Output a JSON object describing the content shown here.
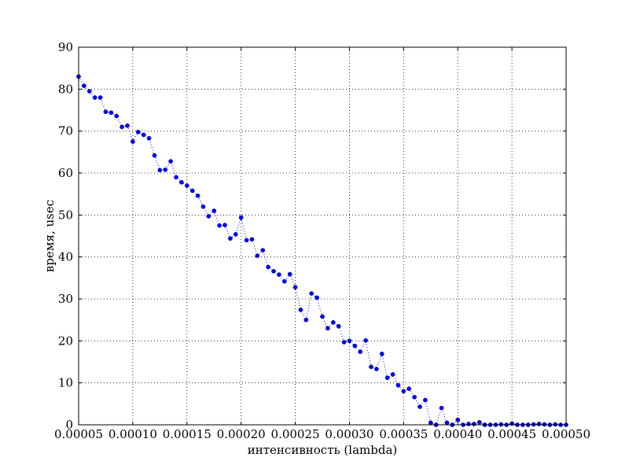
{
  "chart_data": {
    "type": "line",
    "title": "",
    "xlabel": "интенсивность (lambda)",
    "ylabel": "время, usec",
    "xlim": [
      5e-05,
      0.0005
    ],
    "ylim": [
      0,
      90
    ],
    "xticks": [
      "0.00005",
      "0.00010",
      "0.00015",
      "0.00020",
      "0.00025",
      "0.00030",
      "0.00035",
      "0.00040",
      "0.00045",
      "0.00050"
    ],
    "yticks": [
      "0",
      "10",
      "20",
      "30",
      "40",
      "50",
      "60",
      "70",
      "80",
      "90"
    ],
    "grid": true,
    "line_style": "dotted",
    "marker": "circle",
    "color": "#0000ff",
    "series": [
      {
        "x": [
          5e-05,
          5.5e-05,
          6e-05,
          6.5e-05,
          7e-05,
          7.5e-05,
          8e-05,
          8.5e-05,
          9e-05,
          9.5e-05,
          0.0001,
          0.000105,
          0.00011,
          0.000115,
          0.00012,
          0.000125,
          0.00013,
          0.000135,
          0.00014,
          0.000145,
          0.00015,
          0.000155,
          0.00016,
          0.000165,
          0.00017,
          0.000175,
          0.00018,
          0.000185,
          0.00019,
          0.000195,
          0.0002,
          0.000205,
          0.00021,
          0.000215,
          0.00022,
          0.000225,
          0.00023,
          0.000235,
          0.00024,
          0.000245,
          0.00025,
          0.000255,
          0.00026,
          0.000265,
          0.00027,
          0.000275,
          0.00028,
          0.000285,
          0.00029,
          0.000295,
          0.0003,
          0.000305,
          0.00031,
          0.000315,
          0.00032,
          0.000325,
          0.00033,
          0.000335,
          0.00034,
          0.000345,
          0.00035,
          0.000355,
          0.00036,
          0.000365,
          0.00037,
          0.000375,
          0.00038,
          0.000385,
          0.00039,
          0.000395,
          0.0004,
          0.000405,
          0.00041,
          0.000415,
          0.00042,
          0.000425,
          0.00043,
          0.000435,
          0.00044,
          0.000445,
          0.00045,
          0.000455,
          0.00046,
          0.000465,
          0.00047,
          0.000475,
          0.00048,
          0.000485,
          0.00049,
          0.000495,
          0.0005
        ],
        "y": [
          83.0,
          80.8,
          79.5,
          78.0,
          78.0,
          74.6,
          74.4,
          73.6,
          71.0,
          71.3,
          67.5,
          69.8,
          69.1,
          68.3,
          64.2,
          60.7,
          60.8,
          62.8,
          59.0,
          57.8,
          57.0,
          55.8,
          54.6,
          52.0,
          49.7,
          51.0,
          47.5,
          47.6,
          44.4,
          45.4,
          49.4,
          44.0,
          44.2,
          40.3,
          41.6,
          37.6,
          36.6,
          35.8,
          34.2,
          35.9,
          32.8,
          27.4,
          25.0,
          31.3,
          30.3,
          25.8,
          23.0,
          24.4,
          23.5,
          19.7,
          20.0,
          18.8,
          17.4,
          20.1,
          13.8,
          13.3,
          16.9,
          11.2,
          12.0,
          9.4,
          8.0,
          8.6,
          6.6,
          4.3,
          5.9,
          0.5,
          0.0,
          4.0,
          0.5,
          0.0,
          1.2,
          0.0,
          0.2,
          0.2,
          0.6,
          0.0,
          0.0,
          0.0,
          0.1,
          0.0,
          0.3,
          0.0,
          0.0,
          0.0,
          0.1,
          0.2,
          0.1,
          0.0,
          0.1,
          0.0,
          0.0
        ]
      }
    ]
  }
}
